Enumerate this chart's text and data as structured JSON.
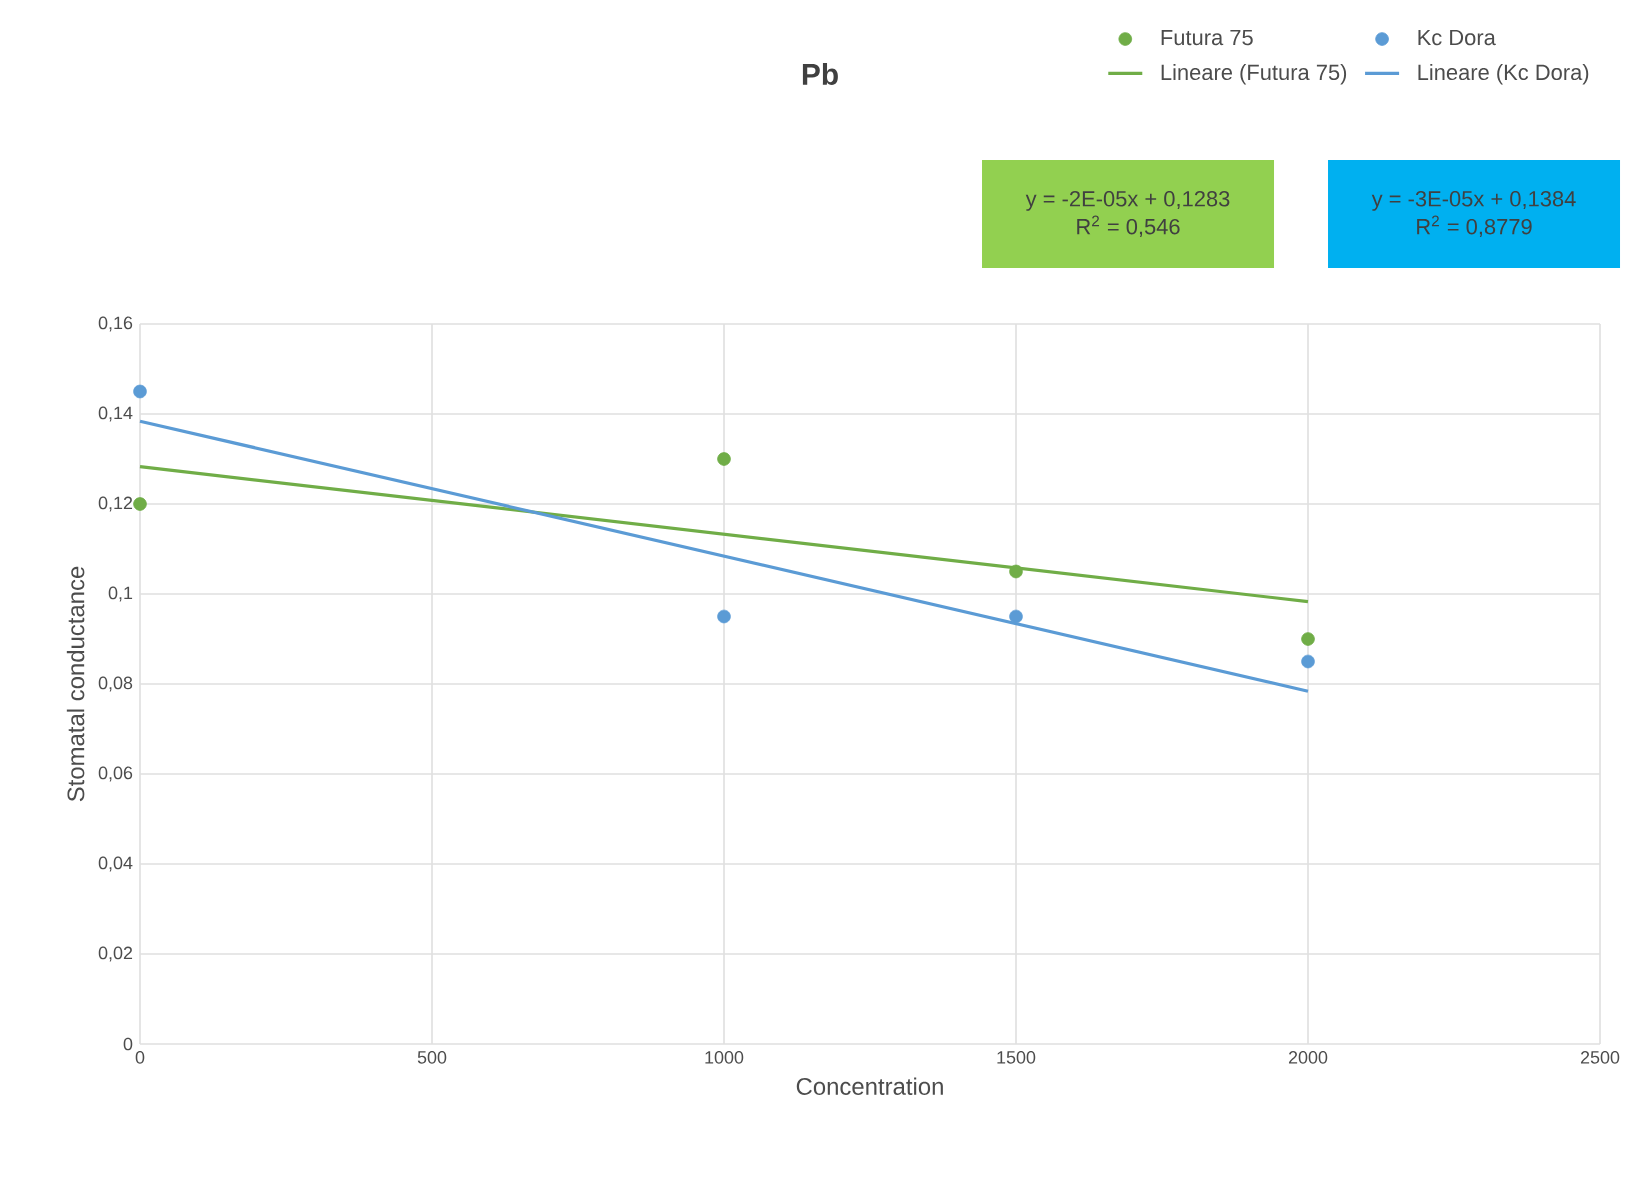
{
  "chart_data": {
    "type": "scatter",
    "title": "Pb",
    "xlabel": "Concentration",
    "ylabel": "Stomatal conductance",
    "series": [
      {
        "name": "Futura 75",
        "color": "#70ad47",
        "x": [
          0,
          1000,
          1500,
          2000
        ],
        "values": [
          0.12,
          0.13,
          0.105,
          0.09
        ],
        "marker": "circle"
      },
      {
        "name": "Kc Dora",
        "color": "#5b9bd5",
        "x": [
          0,
          1000,
          1500,
          2000
        ],
        "values": [
          0.145,
          0.095,
          0.095,
          0.085
        ],
        "marker": "circle"
      },
      {
        "name": "Lineare (Futura 75)",
        "type": "line",
        "color": "#70ad47",
        "x": [
          0,
          2000
        ],
        "values": [
          0.1283,
          0.0983
        ],
        "marker": "none"
      },
      {
        "name": "Lineare (Kc Dora)",
        "type": "line",
        "color": "#5b9bd5",
        "x": [
          0,
          2000
        ],
        "values": [
          0.1384,
          0.0784
        ],
        "marker": "none"
      }
    ],
    "annotations": [
      "y = -2E-05x + 0,1283",
      "R$^{2}$ = 0,546",
      "y = -3E-05x + 0,1384",
      "R$^{2}$ = 0,8779"
    ],
    "xlim": [
      0,
      2500
    ],
    "xticks": [
      0,
      500,
      1000,
      1500,
      2000,
      2500
    ],
    "ylim": [
      0,
      0.16
    ],
    "yticks": [
      0,
      {
        "value": 0.02,
        "label": "0,02"
      },
      {
        "value": 0.04,
        "label": "0,04"
      },
      {
        "value": 0.06,
        "label": "0,06"
      },
      {
        "value": 0.08,
        "label": "0,08"
      },
      {
        "value": 0.1,
        "label": "0,1"
      },
      {
        "value": 0.12,
        "label": "0,12"
      },
      {
        "value": 0.14,
        "label": "0,14"
      },
      {
        "value": 0.16,
        "label": "0,16"
      }
    ],
    "grid": true,
    "legend": "top right"
  }
}
